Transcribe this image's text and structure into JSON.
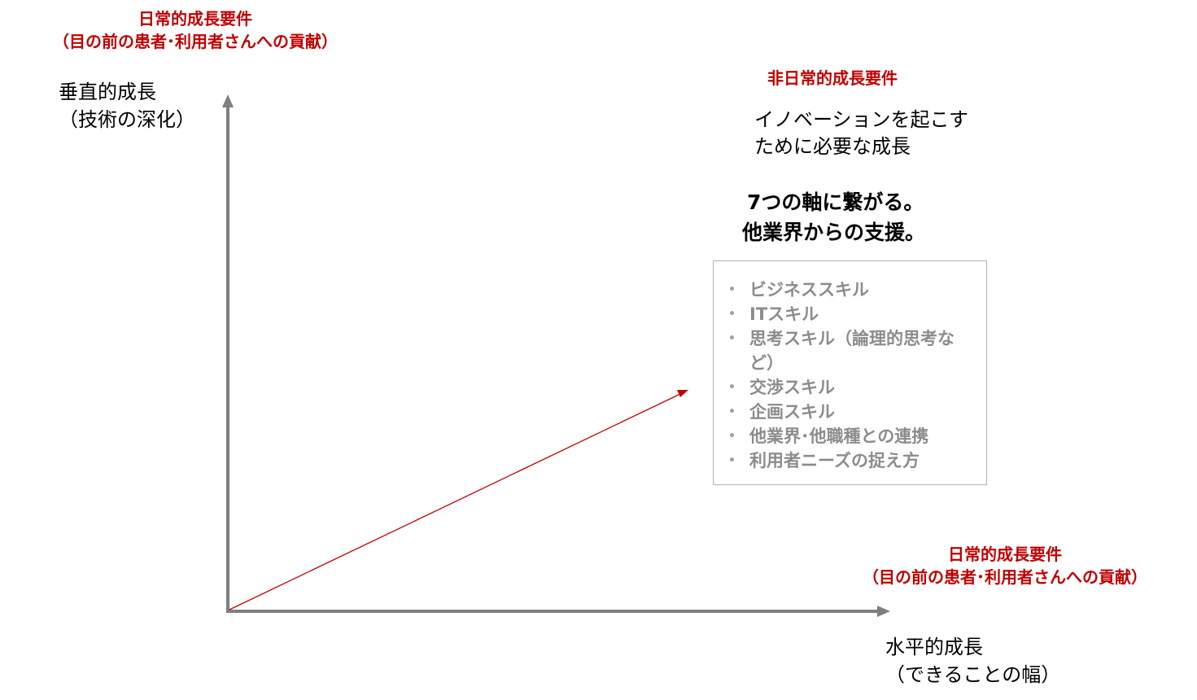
{
  "top_left_req": {
    "title": "日常的成長要件",
    "subtitle": "（目の前の患者･利用者さんへの貢献）"
  },
  "vertical_axis": {
    "line1": "垂直的成長",
    "line2": "（技術の深化）"
  },
  "top_right_req": {
    "title": "非日常的成長要件"
  },
  "innovation_text": {
    "line1": "イノベーションを起こす",
    "line2": "ために必要な成長"
  },
  "seven_axes_text": {
    "line1": "7つの軸に繋がる。",
    "line2": "他業界からの支援。"
  },
  "skills": [
    "ビジネススキル",
    "ITスキル",
    "思考スキル（論理的思考など）",
    "交渉スキル",
    "企画スキル",
    "他業界･他職種との連携",
    "利用者ニーズの捉え方"
  ],
  "bottom_right_req": {
    "title": "日常的成長要件",
    "subtitle": "（目の前の患者･利用者さんへの貢献）"
  },
  "horizontal_axis": {
    "line1": "水平的成長",
    "line2": "（できることの幅）"
  },
  "colors": {
    "accent_red": "#c00000",
    "axis_gray": "#7f7f7f",
    "skill_gray": "#8c8c8c"
  }
}
